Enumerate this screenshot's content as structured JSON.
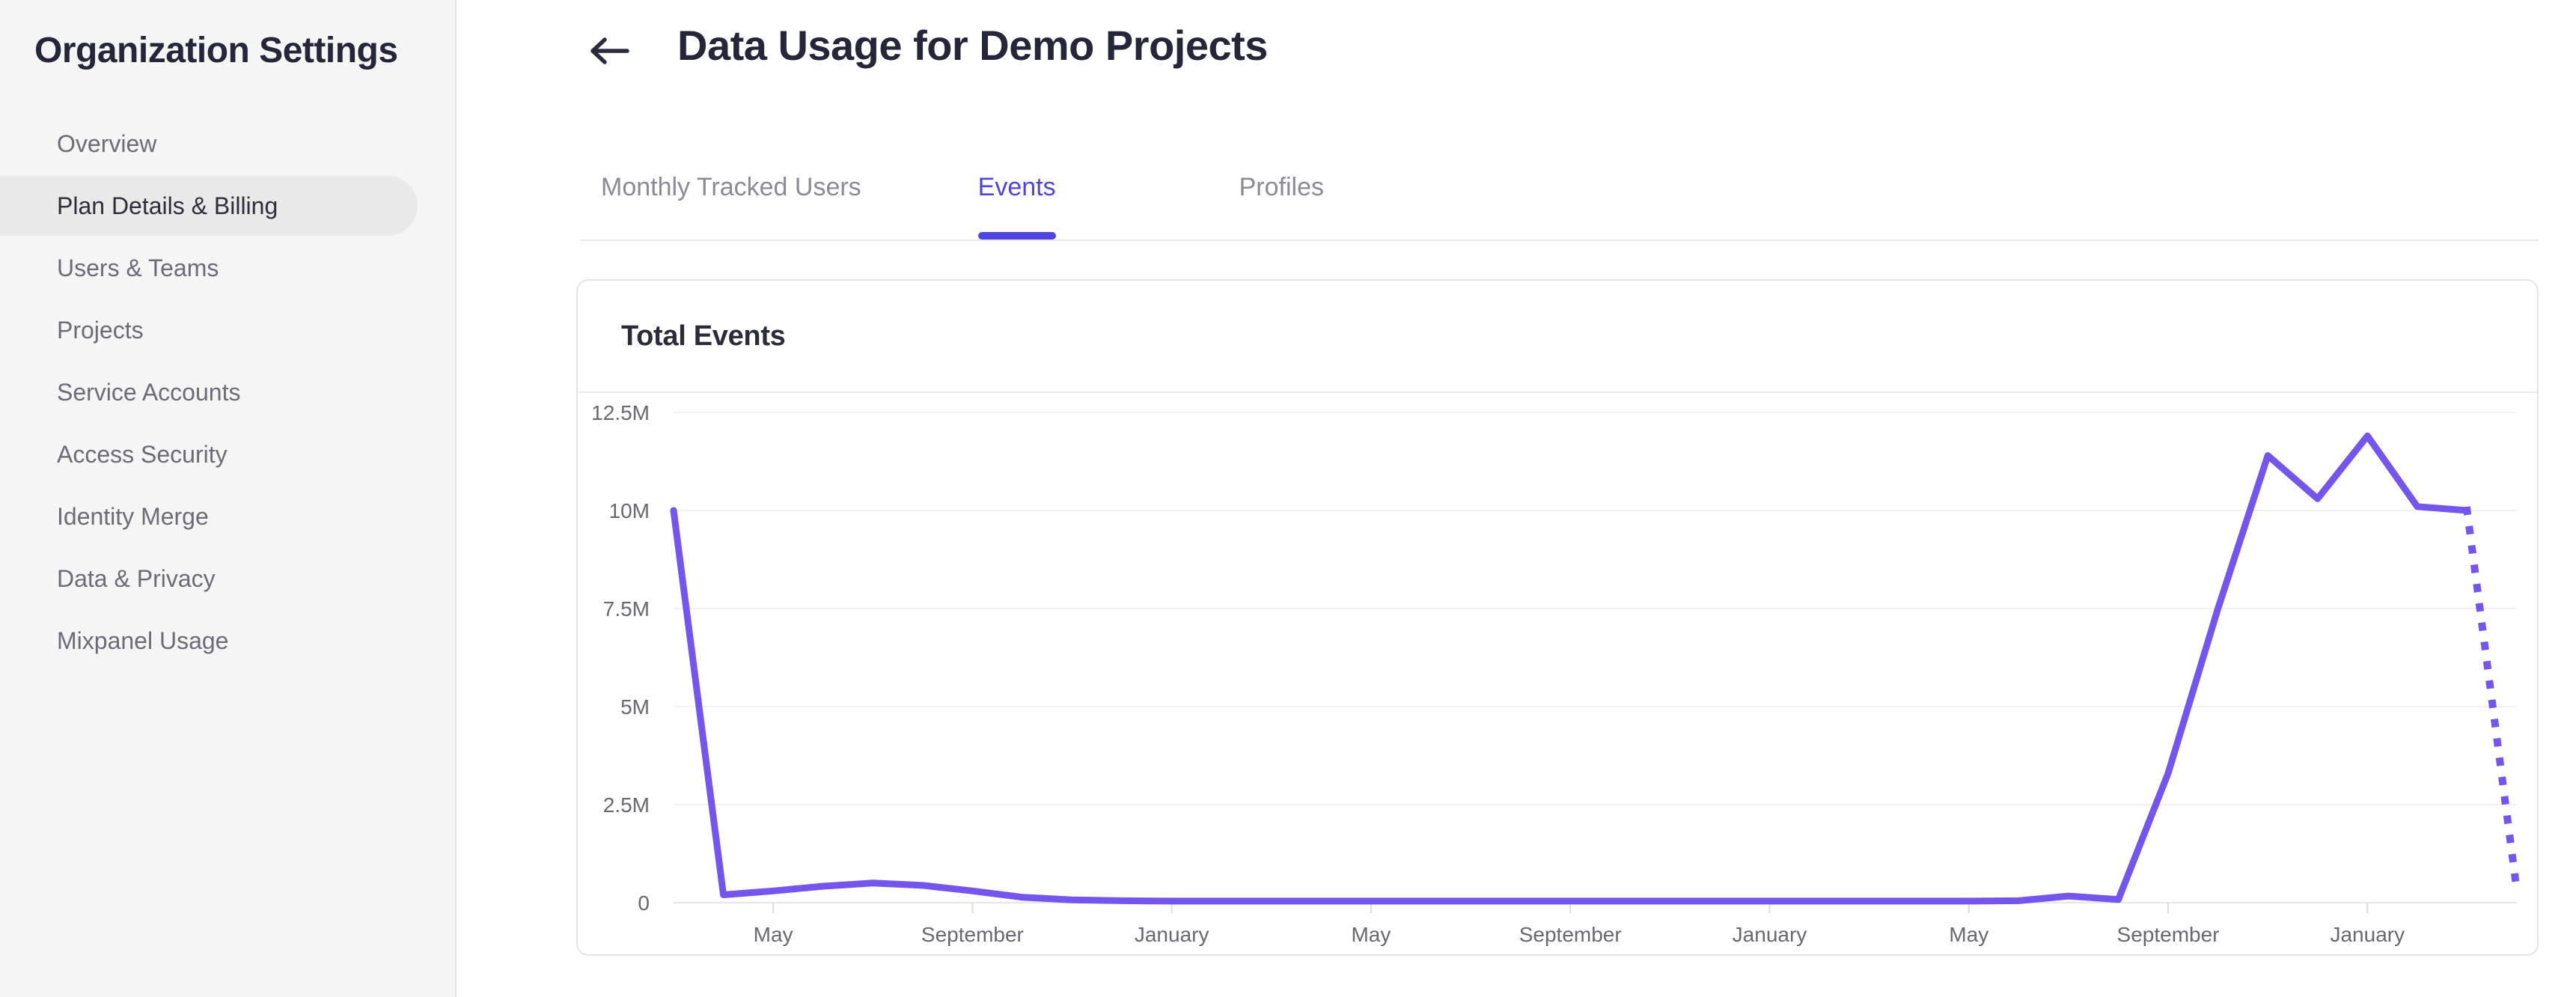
{
  "sidebar": {
    "title": "Organization Settings",
    "items": [
      {
        "label": "Overview",
        "active": false
      },
      {
        "label": "Plan Details & Billing",
        "active": true
      },
      {
        "label": "Users & Teams",
        "active": false
      },
      {
        "label": "Projects",
        "active": false
      },
      {
        "label": "Service Accounts",
        "active": false
      },
      {
        "label": "Access Security",
        "active": false
      },
      {
        "label": "Identity Merge",
        "active": false
      },
      {
        "label": "Data & Privacy",
        "active": false
      },
      {
        "label": "Mixpanel Usage",
        "active": false
      }
    ]
  },
  "header": {
    "title": "Data Usage for Demo Projects",
    "back_icon": "left-arrow"
  },
  "tabs": [
    {
      "label": "Monthly Tracked Users",
      "active": false
    },
    {
      "label": "Events",
      "active": true
    },
    {
      "label": "Profiles",
      "active": false
    }
  ],
  "card": {
    "title": "Total Events"
  },
  "colors": {
    "accent": "#4f44e0",
    "chart_line": "#7456ee",
    "sidebar_bg": "#f5f5f6",
    "selected_nav_bg": "#e9e9ea"
  },
  "chart_data": {
    "type": "line",
    "title": "Total Events",
    "unit": "events",
    "grid": true,
    "legend": null,
    "line_color": "#7456ee",
    "ylim_millions": [
      0,
      12.5
    ],
    "y_ticks": [
      {
        "label": "0",
        "value_millions": 0
      },
      {
        "label": "2.5M",
        "value_millions": 2.5
      },
      {
        "label": "5M",
        "value_millions": 5
      },
      {
        "label": "7.5M",
        "value_millions": 7.5
      },
      {
        "label": "10M",
        "value_millions": 10
      },
      {
        "label": "12.5M",
        "value_millions": 12.5
      }
    ],
    "x_axis_span_months": [
      0,
      37
    ],
    "x_ticks": [
      {
        "label": "May",
        "month_index": 2
      },
      {
        "label": "September",
        "month_index": 6
      },
      {
        "label": "January",
        "month_index": 10
      },
      {
        "label": "May",
        "month_index": 14
      },
      {
        "label": "September",
        "month_index": 18
      },
      {
        "label": "January",
        "month_index": 22
      },
      {
        "label": "May",
        "month_index": 26
      },
      {
        "label": "September",
        "month_index": 30
      },
      {
        "label": "January",
        "month_index": 34
      }
    ],
    "series": [
      {
        "name": "Total Events",
        "style": "solid",
        "values_millions": [
          10,
          0.2,
          0.3,
          0.42,
          0.5,
          0.44,
          0.3,
          0.14,
          0.07,
          0.05,
          0.04,
          0.04,
          0.04,
          0.04,
          0.04,
          0.04,
          0.04,
          0.04,
          0.04,
          0.04,
          0.04,
          0.04,
          0.04,
          0.04,
          0.04,
          0.04,
          0.04,
          0.05,
          0.17,
          0.08,
          3.3,
          7.5,
          11.4,
          10.3,
          11.9,
          10.1,
          10
        ]
      }
    ],
    "projection": {
      "style": "dotted",
      "from_month_index": 36,
      "to_month_index": 37,
      "end_value_millions": 0.3
    }
  }
}
